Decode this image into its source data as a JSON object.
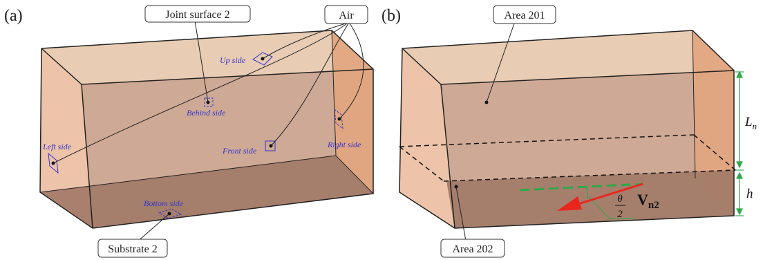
{
  "panel_a": {
    "label": "(a)",
    "callouts": {
      "joint_surface": "Joint surface 2",
      "air": "Air",
      "substrate": "Substrate 2"
    },
    "sides": {
      "up": "Up side",
      "behind": "Behind side",
      "left": "Left side",
      "front": "Front side",
      "right": "Right side",
      "bottom": "Bottom side"
    }
  },
  "panel_b": {
    "label": "(b)",
    "callouts": {
      "area_top": "Area 201",
      "area_bottom": "Area 202"
    },
    "dimensions": {
      "length": "L",
      "length_subscript": "n",
      "height": "h"
    },
    "angle": {
      "numerator": "θ",
      "denominator": "2"
    },
    "vector": {
      "symbol": "V",
      "subscript": "n2"
    }
  },
  "colors": {
    "face_front": "#c9a08a",
    "face_top": "#e6c7ac",
    "face_left": "#ebbca0",
    "face_right": "#e2a57e",
    "face_bottom": "#a27b68",
    "marker": "#3333cc",
    "dimension": "#2ea84a",
    "vector": "#e8261e"
  }
}
